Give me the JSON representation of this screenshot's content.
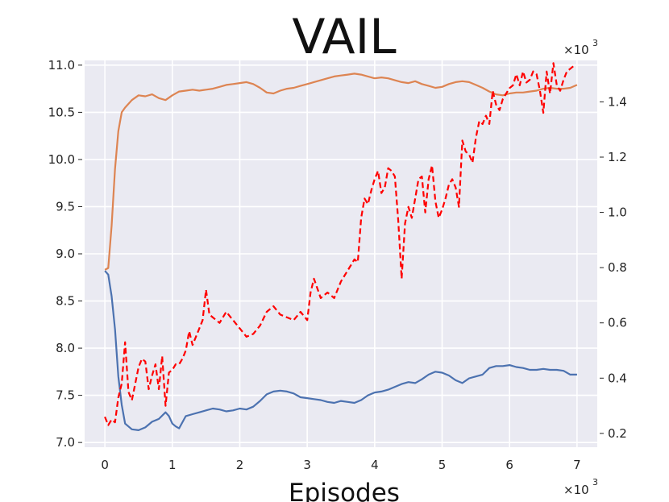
{
  "chart_data": {
    "type": "line",
    "title": "VAIL",
    "xlabel": "Episodes",
    "ylabel": "",
    "x_multiplier": "×10",
    "x_multiplier_exp": "3",
    "right_multiplier": "×10",
    "right_multiplier_exp": "3",
    "xlim": [
      -0.3,
      7.3
    ],
    "ylim_left": [
      6.95,
      11.05
    ],
    "ylim_right": [
      0.15,
      1.55
    ],
    "x_ticks": [
      0,
      1,
      2,
      3,
      4,
      5,
      6,
      7
    ],
    "y_ticks_left": [
      7.0,
      7.5,
      8.0,
      8.5,
      9.0,
      9.5,
      10.0,
      10.5,
      11.0
    ],
    "y_ticks_right": [
      0.2,
      0.4,
      0.6,
      0.8,
      1.0,
      1.2,
      1.4
    ],
    "grid": true,
    "background": "#eaeaf2",
    "series": [
      {
        "axis": "left",
        "color": "#dd8452",
        "style": "solid",
        "x": [
          0.0,
          0.05,
          0.1,
          0.15,
          0.2,
          0.25,
          0.3,
          0.4,
          0.5,
          0.6,
          0.7,
          0.8,
          0.9,
          1.0,
          1.1,
          1.2,
          1.3,
          1.4,
          1.5,
          1.6,
          1.7,
          1.8,
          1.9,
          2.0,
          2.1,
          2.2,
          2.3,
          2.4,
          2.5,
          2.6,
          2.7,
          2.8,
          2.9,
          3.0,
          3.1,
          3.2,
          3.3,
          3.4,
          3.5,
          3.6,
          3.7,
          3.8,
          3.9,
          4.0,
          4.1,
          4.2,
          4.3,
          4.4,
          4.5,
          4.6,
          4.7,
          4.8,
          4.9,
          5.0,
          5.1,
          5.2,
          5.3,
          5.4,
          5.5,
          5.6,
          5.7,
          5.8,
          5.9,
          6.0,
          6.1,
          6.2,
          6.3,
          6.4,
          6.5,
          6.6,
          6.7,
          6.8,
          6.9,
          7.0
        ],
        "y": [
          8.83,
          8.85,
          9.3,
          9.9,
          10.3,
          10.5,
          10.55,
          10.63,
          10.68,
          10.67,
          10.69,
          10.65,
          10.63,
          10.68,
          10.72,
          10.73,
          10.74,
          10.73,
          10.74,
          10.75,
          10.77,
          10.79,
          10.8,
          10.81,
          10.82,
          10.8,
          10.76,
          10.71,
          10.7,
          10.73,
          10.75,
          10.76,
          10.78,
          10.8,
          10.82,
          10.84,
          10.86,
          10.88,
          10.89,
          10.9,
          10.91,
          10.9,
          10.88,
          10.86,
          10.87,
          10.86,
          10.84,
          10.82,
          10.81,
          10.83,
          10.8,
          10.78,
          10.76,
          10.77,
          10.8,
          10.82,
          10.83,
          10.82,
          10.79,
          10.76,
          10.72,
          10.69,
          10.68,
          10.7,
          10.71,
          10.71,
          10.72,
          10.73,
          10.75,
          10.76,
          10.75,
          10.75,
          10.76,
          10.79
        ]
      },
      {
        "axis": "left",
        "color": "#4c72b0",
        "style": "solid",
        "x": [
          0.0,
          0.05,
          0.1,
          0.15,
          0.2,
          0.25,
          0.3,
          0.4,
          0.5,
          0.6,
          0.7,
          0.8,
          0.9,
          0.95,
          1.0,
          1.05,
          1.1,
          1.2,
          1.3,
          1.4,
          1.5,
          1.6,
          1.7,
          1.8,
          1.9,
          2.0,
          2.1,
          2.2,
          2.3,
          2.4,
          2.5,
          2.6,
          2.7,
          2.8,
          2.9,
          3.0,
          3.1,
          3.2,
          3.3,
          3.4,
          3.5,
          3.6,
          3.7,
          3.8,
          3.9,
          4.0,
          4.1,
          4.2,
          4.3,
          4.4,
          4.5,
          4.6,
          4.7,
          4.8,
          4.9,
          5.0,
          5.1,
          5.2,
          5.3,
          5.4,
          5.5,
          5.6,
          5.7,
          5.8,
          5.9,
          6.0,
          6.1,
          6.2,
          6.3,
          6.4,
          6.5,
          6.6,
          6.7,
          6.8,
          6.9,
          7.0
        ],
        "y": [
          8.82,
          8.78,
          8.55,
          8.2,
          7.7,
          7.4,
          7.2,
          7.14,
          7.13,
          7.16,
          7.22,
          7.25,
          7.32,
          7.28,
          7.2,
          7.17,
          7.15,
          7.28,
          7.3,
          7.32,
          7.34,
          7.36,
          7.35,
          7.33,
          7.34,
          7.36,
          7.35,
          7.38,
          7.44,
          7.51,
          7.54,
          7.55,
          7.54,
          7.52,
          7.48,
          7.47,
          7.46,
          7.45,
          7.43,
          7.42,
          7.44,
          7.43,
          7.42,
          7.45,
          7.5,
          7.53,
          7.54,
          7.56,
          7.59,
          7.62,
          7.64,
          7.63,
          7.67,
          7.72,
          7.75,
          7.74,
          7.71,
          7.66,
          7.63,
          7.68,
          7.7,
          7.72,
          7.79,
          7.81,
          7.81,
          7.82,
          7.8,
          7.79,
          7.77,
          7.77,
          7.78,
          7.77,
          7.77,
          7.76,
          7.72,
          7.72
        ]
      },
      {
        "axis": "right",
        "color": "#ff0000",
        "style": "dashed",
        "x": [
          0.0,
          0.05,
          0.1,
          0.15,
          0.2,
          0.25,
          0.3,
          0.35,
          0.4,
          0.45,
          0.5,
          0.55,
          0.6,
          0.65,
          0.7,
          0.75,
          0.8,
          0.85,
          0.9,
          0.95,
          1.0,
          1.05,
          1.1,
          1.15,
          1.2,
          1.25,
          1.3,
          1.35,
          1.4,
          1.45,
          1.5,
          1.55,
          1.6,
          1.7,
          1.8,
          1.9,
          2.0,
          2.1,
          2.2,
          2.3,
          2.4,
          2.5,
          2.6,
          2.7,
          2.8,
          2.9,
          3.0,
          3.05,
          3.1,
          3.2,
          3.3,
          3.4,
          3.5,
          3.6,
          3.7,
          3.75,
          3.8,
          3.85,
          3.9,
          3.95,
          4.0,
          4.05,
          4.1,
          4.15,
          4.2,
          4.25,
          4.3,
          4.35,
          4.4,
          4.45,
          4.5,
          4.55,
          4.6,
          4.65,
          4.7,
          4.75,
          4.8,
          4.85,
          4.9,
          4.95,
          5.0,
          5.05,
          5.1,
          5.15,
          5.2,
          5.25,
          5.3,
          5.35,
          5.4,
          5.45,
          5.5,
          5.55,
          5.6,
          5.65,
          5.7,
          5.75,
          5.8,
          5.85,
          5.9,
          5.95,
          6.0,
          6.05,
          6.1,
          6.15,
          6.2,
          6.25,
          6.3,
          6.35,
          6.4,
          6.45,
          6.5,
          6.55,
          6.6,
          6.65,
          6.7,
          6.75,
          6.8,
          6.85,
          6.9,
          6.95
        ],
        "y": [
          0.26,
          0.23,
          0.25,
          0.24,
          0.33,
          0.38,
          0.53,
          0.35,
          0.32,
          0.38,
          0.44,
          0.47,
          0.46,
          0.36,
          0.41,
          0.45,
          0.36,
          0.48,
          0.3,
          0.42,
          0.43,
          0.45,
          0.45,
          0.47,
          0.5,
          0.57,
          0.52,
          0.55,
          0.58,
          0.61,
          0.72,
          0.63,
          0.62,
          0.6,
          0.64,
          0.61,
          0.58,
          0.55,
          0.56,
          0.59,
          0.64,
          0.66,
          0.63,
          0.62,
          0.61,
          0.64,
          0.61,
          0.71,
          0.76,
          0.69,
          0.71,
          0.69,
          0.75,
          0.79,
          0.83,
          0.82,
          0.98,
          1.05,
          1.03,
          1.08,
          1.12,
          1.15,
          1.07,
          1.09,
          1.16,
          1.15,
          1.13,
          0.97,
          0.76,
          0.96,
          1.02,
          0.98,
          1.05,
          1.12,
          1.13,
          1.0,
          1.12,
          1.17,
          1.04,
          0.98,
          1.01,
          1.05,
          1.1,
          1.12,
          1.09,
          1.02,
          1.26,
          1.22,
          1.21,
          1.18,
          1.27,
          1.33,
          1.32,
          1.35,
          1.32,
          1.44,
          1.39,
          1.37,
          1.41,
          1.43,
          1.45,
          1.46,
          1.5,
          1.46,
          1.51,
          1.47,
          1.48,
          1.51,
          1.5,
          1.44,
          1.36,
          1.51,
          1.43,
          1.54,
          1.46,
          1.44,
          1.48,
          1.51,
          1.52,
          1.53
        ]
      }
    ]
  }
}
